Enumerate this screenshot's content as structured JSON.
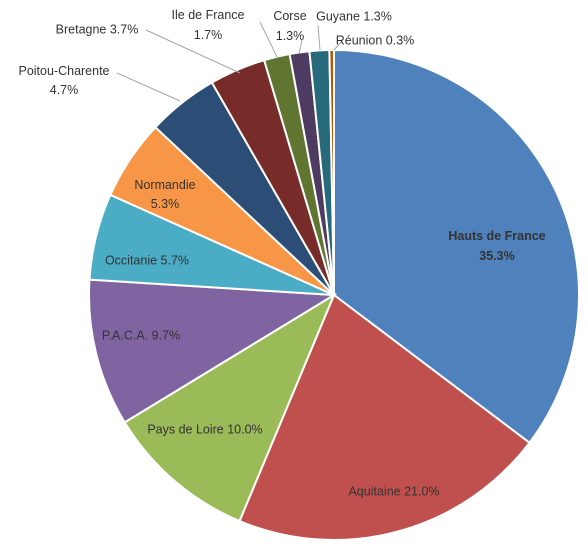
{
  "chart_data": {
    "type": "pie",
    "title": "",
    "start_angle_deg": 0,
    "direction": "clockwise",
    "slices": [
      {
        "label": "Hauts de France",
        "value": 35.3,
        "display": "35.3%",
        "color": "#4F81BD"
      },
      {
        "label": "Aquitaine",
        "value": 21.0,
        "display": "21.0%",
        "color": "#C0504D"
      },
      {
        "label": "Pays de Loire",
        "value": 10.0,
        "display": "10.0%",
        "color": "#9BBB59"
      },
      {
        "label": "P.A.C.A.",
        "value": 9.7,
        "display": "9.7%",
        "color": "#8064A2"
      },
      {
        "label": "Occitanie",
        "value": 5.7,
        "display": "5.7%",
        "color": "#4BACC6"
      },
      {
        "label": "Normandie",
        "value": 5.3,
        "display": "5.3%",
        "color": "#F79646"
      },
      {
        "label": "Poitou-Charente",
        "value": 4.7,
        "display": "4.7%",
        "color": "#2C4D75"
      },
      {
        "label": "Bretagne",
        "value": 3.7,
        "display": "3.7%",
        "color": "#772C2A"
      },
      {
        "label": "Ile de France",
        "value": 1.7,
        "display": "1.7%",
        "color": "#5F7530"
      },
      {
        "label": "Corse",
        "value": 1.3,
        "display": "1.3%",
        "color": "#4D3B62"
      },
      {
        "label": "Guyane",
        "value": 1.3,
        "display": "1.3%",
        "color": "#276A7C"
      },
      {
        "label": "Réunion",
        "value": 0.3,
        "display": "0.3%",
        "color": "#B65708"
      }
    ]
  }
}
